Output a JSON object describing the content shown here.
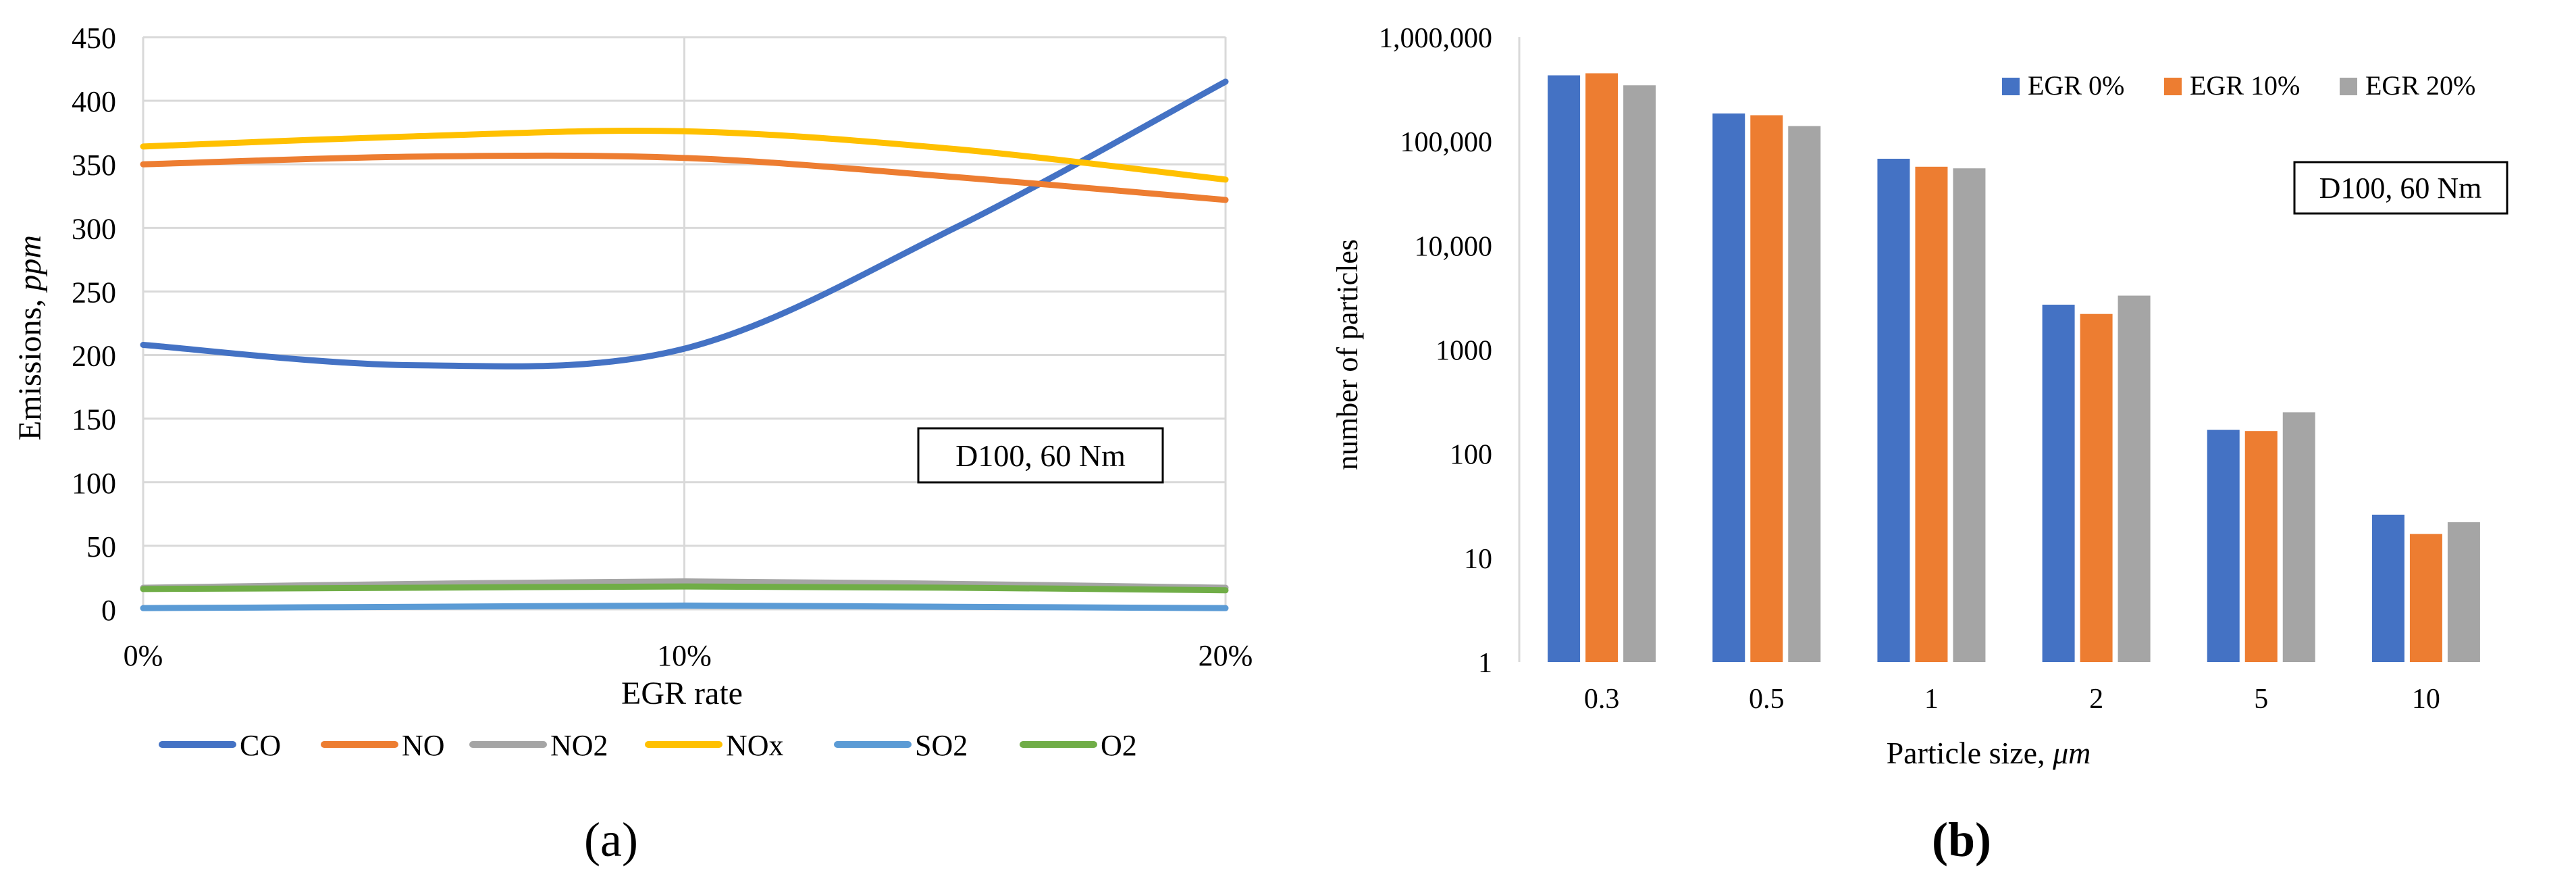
{
  "chart_data": [
    {
      "type": "line",
      "panel_label": "(a)",
      "title": "",
      "xlabel": "EGR rate",
      "ylabel_prefix": "Emissions, ",
      "ylabel_unit": "ppm",
      "x": [
        0,
        5,
        10,
        15,
        20
      ],
      "x_tick_labels": [
        "0%",
        "10%",
        "20%"
      ],
      "x_tick_values": [
        0,
        10,
        20
      ],
      "y_ticks": [
        0,
        50,
        100,
        150,
        200,
        250,
        300,
        350,
        400,
        450
      ],
      "ylim": [
        0,
        450
      ],
      "grid": true,
      "legend_position": "bottom",
      "annotation": "D100, 60 Nm",
      "series": [
        {
          "name": "CO",
          "color": "#4472C4",
          "values": [
            208,
            192,
            205,
            300,
            415
          ]
        },
        {
          "name": "NO",
          "color": "#ED7D31",
          "values": [
            350,
            356,
            355,
            340,
            322
          ]
        },
        {
          "name": "NO2",
          "color": "#A5A5A5",
          "values": [
            17,
            20,
            22,
            20,
            17
          ]
        },
        {
          "name": "NOx",
          "color": "#FFC000",
          "values": [
            364,
            372,
            376,
            362,
            338
          ]
        },
        {
          "name": "SO2",
          "color": "#5B9BD5",
          "values": [
            1,
            2,
            3,
            2,
            1
          ]
        },
        {
          "name": "O2",
          "color": "#70AD47",
          "values": [
            16,
            17,
            18,
            17,
            15
          ]
        }
      ]
    },
    {
      "type": "bar",
      "panel_label": "(b)",
      "title": "",
      "xlabel_prefix": "Particle size, ",
      "xlabel_unit": "μm",
      "ylabel": "number of particles",
      "yscale": "log",
      "ylim": [
        1,
        1000000
      ],
      "y_tick_labels": [
        "1",
        "10",
        "100",
        "1000",
        "10,000",
        "100,000",
        "1,000,000"
      ],
      "y_tick_values": [
        1,
        10,
        100,
        1000,
        10000,
        100000,
        1000000
      ],
      "categories": [
        "0.3",
        "0.5",
        "1",
        "2",
        "5",
        "10"
      ],
      "legend_position": "top-right",
      "annotation": "D100, 60 Nm",
      "series": [
        {
          "name": "EGR 0%",
          "color": "#4472C4",
          "values": [
            430000,
            185000,
            68000,
            2700,
            170,
            26
          ]
        },
        {
          "name": "EGR 10%",
          "color": "#ED7D31",
          "values": [
            450000,
            178000,
            57000,
            2200,
            165,
            17
          ]
        },
        {
          "name": "EGR 20%",
          "color": "#A5A5A5",
          "values": [
            345000,
            140000,
            55000,
            3300,
            250,
            22
          ]
        }
      ]
    }
  ]
}
